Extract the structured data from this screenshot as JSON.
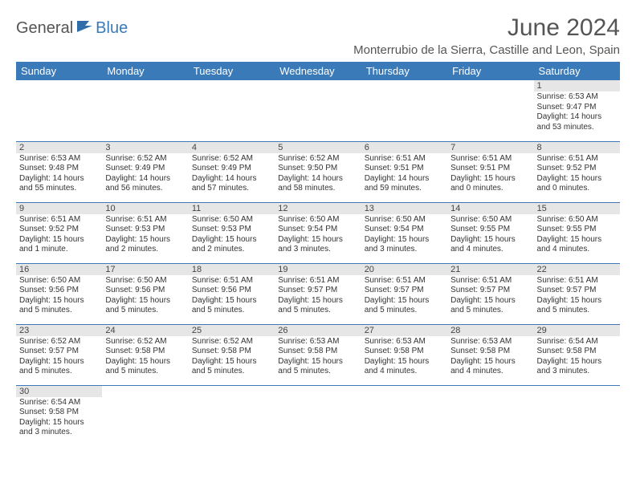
{
  "logo": {
    "part1": "General",
    "part2": "Blue"
  },
  "title": "June 2024",
  "location": "Monterrubio de la Sierra, Castille and Leon, Spain",
  "colors": {
    "header_bg": "#3a7ab8",
    "header_fg": "#ffffff",
    "daynum_bg": "#e6e6e6",
    "row_border": "#3a7ab8",
    "text": "#333333",
    "logo_gray": "#555555",
    "logo_blue": "#3a7ab8"
  },
  "weekdays": [
    "Sunday",
    "Monday",
    "Tuesday",
    "Wednesday",
    "Thursday",
    "Friday",
    "Saturday"
  ],
  "weeks": [
    [
      null,
      null,
      null,
      null,
      null,
      null,
      {
        "n": "1",
        "sr": "Sunrise: 6:53 AM",
        "ss": "Sunset: 9:47 PM",
        "dl": "Daylight: 14 hours and 53 minutes."
      }
    ],
    [
      {
        "n": "2",
        "sr": "Sunrise: 6:53 AM",
        "ss": "Sunset: 9:48 PM",
        "dl": "Daylight: 14 hours and 55 minutes."
      },
      {
        "n": "3",
        "sr": "Sunrise: 6:52 AM",
        "ss": "Sunset: 9:49 PM",
        "dl": "Daylight: 14 hours and 56 minutes."
      },
      {
        "n": "4",
        "sr": "Sunrise: 6:52 AM",
        "ss": "Sunset: 9:49 PM",
        "dl": "Daylight: 14 hours and 57 minutes."
      },
      {
        "n": "5",
        "sr": "Sunrise: 6:52 AM",
        "ss": "Sunset: 9:50 PM",
        "dl": "Daylight: 14 hours and 58 minutes."
      },
      {
        "n": "6",
        "sr": "Sunrise: 6:51 AM",
        "ss": "Sunset: 9:51 PM",
        "dl": "Daylight: 14 hours and 59 minutes."
      },
      {
        "n": "7",
        "sr": "Sunrise: 6:51 AM",
        "ss": "Sunset: 9:51 PM",
        "dl": "Daylight: 15 hours and 0 minutes."
      },
      {
        "n": "8",
        "sr": "Sunrise: 6:51 AM",
        "ss": "Sunset: 9:52 PM",
        "dl": "Daylight: 15 hours and 0 minutes."
      }
    ],
    [
      {
        "n": "9",
        "sr": "Sunrise: 6:51 AM",
        "ss": "Sunset: 9:52 PM",
        "dl": "Daylight: 15 hours and 1 minute."
      },
      {
        "n": "10",
        "sr": "Sunrise: 6:51 AM",
        "ss": "Sunset: 9:53 PM",
        "dl": "Daylight: 15 hours and 2 minutes."
      },
      {
        "n": "11",
        "sr": "Sunrise: 6:50 AM",
        "ss": "Sunset: 9:53 PM",
        "dl": "Daylight: 15 hours and 2 minutes."
      },
      {
        "n": "12",
        "sr": "Sunrise: 6:50 AM",
        "ss": "Sunset: 9:54 PM",
        "dl": "Daylight: 15 hours and 3 minutes."
      },
      {
        "n": "13",
        "sr": "Sunrise: 6:50 AM",
        "ss": "Sunset: 9:54 PM",
        "dl": "Daylight: 15 hours and 3 minutes."
      },
      {
        "n": "14",
        "sr": "Sunrise: 6:50 AM",
        "ss": "Sunset: 9:55 PM",
        "dl": "Daylight: 15 hours and 4 minutes."
      },
      {
        "n": "15",
        "sr": "Sunrise: 6:50 AM",
        "ss": "Sunset: 9:55 PM",
        "dl": "Daylight: 15 hours and 4 minutes."
      }
    ],
    [
      {
        "n": "16",
        "sr": "Sunrise: 6:50 AM",
        "ss": "Sunset: 9:56 PM",
        "dl": "Daylight: 15 hours and 5 minutes."
      },
      {
        "n": "17",
        "sr": "Sunrise: 6:50 AM",
        "ss": "Sunset: 9:56 PM",
        "dl": "Daylight: 15 hours and 5 minutes."
      },
      {
        "n": "18",
        "sr": "Sunrise: 6:51 AM",
        "ss": "Sunset: 9:56 PM",
        "dl": "Daylight: 15 hours and 5 minutes."
      },
      {
        "n": "19",
        "sr": "Sunrise: 6:51 AM",
        "ss": "Sunset: 9:57 PM",
        "dl": "Daylight: 15 hours and 5 minutes."
      },
      {
        "n": "20",
        "sr": "Sunrise: 6:51 AM",
        "ss": "Sunset: 9:57 PM",
        "dl": "Daylight: 15 hours and 5 minutes."
      },
      {
        "n": "21",
        "sr": "Sunrise: 6:51 AM",
        "ss": "Sunset: 9:57 PM",
        "dl": "Daylight: 15 hours and 5 minutes."
      },
      {
        "n": "22",
        "sr": "Sunrise: 6:51 AM",
        "ss": "Sunset: 9:57 PM",
        "dl": "Daylight: 15 hours and 5 minutes."
      }
    ],
    [
      {
        "n": "23",
        "sr": "Sunrise: 6:52 AM",
        "ss": "Sunset: 9:57 PM",
        "dl": "Daylight: 15 hours and 5 minutes."
      },
      {
        "n": "24",
        "sr": "Sunrise: 6:52 AM",
        "ss": "Sunset: 9:58 PM",
        "dl": "Daylight: 15 hours and 5 minutes."
      },
      {
        "n": "25",
        "sr": "Sunrise: 6:52 AM",
        "ss": "Sunset: 9:58 PM",
        "dl": "Daylight: 15 hours and 5 minutes."
      },
      {
        "n": "26",
        "sr": "Sunrise: 6:53 AM",
        "ss": "Sunset: 9:58 PM",
        "dl": "Daylight: 15 hours and 5 minutes."
      },
      {
        "n": "27",
        "sr": "Sunrise: 6:53 AM",
        "ss": "Sunset: 9:58 PM",
        "dl": "Daylight: 15 hours and 4 minutes."
      },
      {
        "n": "28",
        "sr": "Sunrise: 6:53 AM",
        "ss": "Sunset: 9:58 PM",
        "dl": "Daylight: 15 hours and 4 minutes."
      },
      {
        "n": "29",
        "sr": "Sunrise: 6:54 AM",
        "ss": "Sunset: 9:58 PM",
        "dl": "Daylight: 15 hours and 3 minutes."
      }
    ],
    [
      {
        "n": "30",
        "sr": "Sunrise: 6:54 AM",
        "ss": "Sunset: 9:58 PM",
        "dl": "Daylight: 15 hours and 3 minutes."
      },
      null,
      null,
      null,
      null,
      null,
      null
    ]
  ]
}
